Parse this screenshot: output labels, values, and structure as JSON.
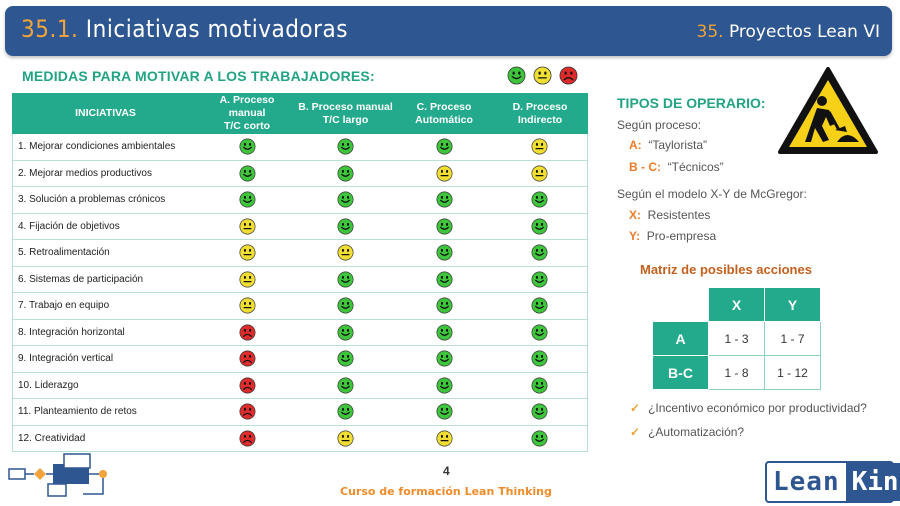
{
  "header": {
    "num": "35.1.",
    "title": "Iniciativas motivadoras",
    "right_num": "35.",
    "right_title": "Proyectos Lean VI"
  },
  "section_title": "MEDIDAS PARA MOTIVAR A LOS TRABAJADORES:",
  "legend": [
    "green-smile-icon",
    "yellow-neutral-icon",
    "red-sad-icon"
  ],
  "colors": {
    "teal": "#23a98b",
    "blue": "#2e5690",
    "orange": "#ee7c27",
    "green": "#3fc53c",
    "yellow": "#f1de33",
    "red": "#de2b2b"
  },
  "table": {
    "headers": [
      {
        "l1": "INICIATIVAS",
        "l2": ""
      },
      {
        "l1": "A. Proceso manual",
        "l2": "T/C corto"
      },
      {
        "l1": "B. Proceso manual",
        "l2": "T/C largo"
      },
      {
        "l1": "C. Proceso",
        "l2": "Automático"
      },
      {
        "l1": "D. Proceso",
        "l2": "Indirecto"
      }
    ],
    "rows": [
      {
        "label": "1. Mejorar condiciones ambientales",
        "cells": [
          "g",
          "g",
          "g",
          "y"
        ]
      },
      {
        "label": "2. Mejorar medios productivos",
        "cells": [
          "g",
          "g",
          "y",
          "y"
        ]
      },
      {
        "label": "3. Solución a problemas crónicos",
        "cells": [
          "g",
          "g",
          "g",
          "g"
        ]
      },
      {
        "label": "4. Fijación de objetivos",
        "cells": [
          "y",
          "g",
          "g",
          "g"
        ]
      },
      {
        "label": "5. Retroalimentación",
        "cells": [
          "y",
          "y",
          "g",
          "g"
        ]
      },
      {
        "label": "6. Sistemas de participación",
        "cells": [
          "y",
          "g",
          "g",
          "g"
        ]
      },
      {
        "label": "7. Trabajo en equipo",
        "cells": [
          "y",
          "g",
          "g",
          "g"
        ]
      },
      {
        "label": "8. Integración horizontal",
        "cells": [
          "r",
          "g",
          "g",
          "g"
        ]
      },
      {
        "label": "9. Integración vertical",
        "cells": [
          "r",
          "g",
          "g",
          "g"
        ]
      },
      {
        "label": "10. Liderazgo",
        "cells": [
          "r",
          "g",
          "g",
          "g"
        ]
      },
      {
        "label": "11. Planteamiento de retos",
        "cells": [
          "r",
          "g",
          "g",
          "g"
        ]
      },
      {
        "label": "12. Creatividad",
        "cells": [
          "r",
          "y",
          "y",
          "g"
        ]
      }
    ]
  },
  "operators": {
    "title": "TIPOS DE OPERARIO:",
    "by_process": "Según proceso:",
    "a_label": "A:",
    "a_text": "“Taylorista”",
    "bc_label": "B - C:",
    "bc_text": "“Técnicos”",
    "by_model": "Según el modelo X-Y de McGregor:",
    "x_label": "X:",
    "x_text": "Resistentes",
    "y_label": "Y:",
    "y_text": "Pro-empresa"
  },
  "matrix": {
    "title": "Matriz de posibles acciones",
    "col_headers": [
      "X",
      "Y"
    ],
    "rows": [
      {
        "label": "A",
        "values": [
          "1 - 3",
          "1 - 7"
        ]
      },
      {
        "label": "B-C",
        "values": [
          "1 - 8",
          "1 - 12"
        ]
      }
    ]
  },
  "questions": [
    "¿Incentivo económico por productividad?",
    "¿Automatización?"
  ],
  "page_number": "4",
  "footer": "Curso de formación Lean Thinking",
  "logo": {
    "lean": "Lean",
    "kin": "Kin"
  }
}
